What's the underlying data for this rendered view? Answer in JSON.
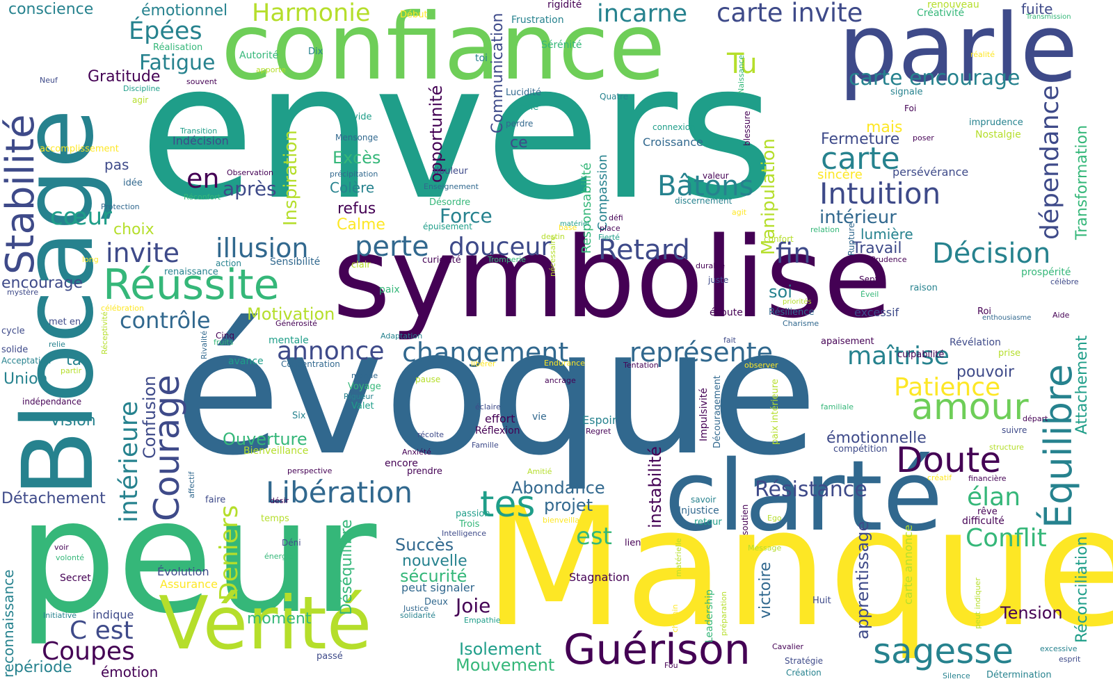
{
  "palette": {
    "dark_purple": "#440154",
    "indigo": "#3e4a89",
    "blue": "#31688e",
    "teal": "#26828e",
    "sea_green": "#1f9e89",
    "green": "#35b779",
    "light_green": "#6ece58",
    "lime": "#b5de2b",
    "yellow": "#fde725",
    "background": "#ffffff"
  },
  "words": [
    {
      "text": "envers",
      "color": "#1f9e89"
    },
    {
      "text": "évoque",
      "color": "#31688e"
    },
    {
      "text": "symbolise",
      "color": "#440154"
    },
    {
      "text": "confiance",
      "color": "#6ece58"
    },
    {
      "text": "parle",
      "color": "#3e4a89"
    },
    {
      "text": "Blocage",
      "color": "#26828e"
    },
    {
      "text": "peur",
      "color": "#35b779"
    },
    {
      "text": "Manque",
      "color": "#fde725"
    },
    {
      "text": "clarté",
      "color": "#31688e"
    },
    {
      "text": "Vérité",
      "color": "#b5de2b"
    },
    {
      "text": "Guérison",
      "color": "#440154"
    },
    {
      "text": "Stabilité",
      "color": "#3e4a89"
    },
    {
      "text": "Équilibre",
      "color": "#26828e"
    },
    {
      "text": "Réussite",
      "color": "#35b779"
    },
    {
      "text": "Doute",
      "color": "#440154"
    },
    {
      "text": "sagesse",
      "color": "#26828e"
    },
    {
      "text": "amour",
      "color": "#6ece58"
    },
    {
      "text": "Harmonie",
      "color": "#b5de2b"
    },
    {
      "text": "carte invite",
      "color": "#3e4a89"
    },
    {
      "text": "incarne",
      "color": "#26828e"
    },
    {
      "text": "Épées",
      "color": "#26828e"
    },
    {
      "text": "Fatigue",
      "color": "#26828e"
    },
    {
      "text": "Tu",
      "color": "#b5de2b"
    },
    {
      "text": "carte encourage",
      "color": "#26828e"
    },
    {
      "text": "carte",
      "color": "#26828e"
    },
    {
      "text": "Intuition",
      "color": "#3e4a89"
    },
    {
      "text": "Bâtons",
      "color": "#26828e"
    },
    {
      "text": "dépendance",
      "color": "#3e4a89"
    },
    {
      "text": "Décision",
      "color": "#26828e"
    },
    {
      "text": "Retard",
      "color": "#3e4a89"
    },
    {
      "text": "fin",
      "color": "#3e4a89"
    },
    {
      "text": "perte",
      "color": "#31688e"
    },
    {
      "text": "douceur",
      "color": "#3e4a89"
    },
    {
      "text": "illusion",
      "color": "#31688e"
    },
    {
      "text": "invite",
      "color": "#3e4a89"
    },
    {
      "text": "changement",
      "color": "#31688e"
    },
    {
      "text": "représente",
      "color": "#31688e"
    },
    {
      "text": "annonce",
      "color": "#3e4a89"
    },
    {
      "text": "contrôle",
      "color": "#31688e"
    },
    {
      "text": "Courage",
      "color": "#3e4a89"
    },
    {
      "text": "intérieure",
      "color": "#26828e"
    },
    {
      "text": "Libération",
      "color": "#31688e"
    },
    {
      "text": "tes",
      "color": "#1f9e89"
    },
    {
      "text": "Patience",
      "color": "#fde725"
    },
    {
      "text": "maîtrise",
      "color": "#26828e"
    },
    {
      "text": "Conflit",
      "color": "#35b779"
    },
    {
      "text": "élan",
      "color": "#35b779"
    },
    {
      "text": "Résistance",
      "color": "#3e4a89"
    },
    {
      "text": "Deniers",
      "color": "#b5de2b"
    },
    {
      "text": "Coupes",
      "color": "#440154"
    },
    {
      "text": "C est",
      "color": "#3e4a89"
    },
    {
      "text": "Joie",
      "color": "#440154"
    },
    {
      "text": "Mouvement",
      "color": "#35b779"
    },
    {
      "text": "Isolement",
      "color": "#1f9e89"
    },
    {
      "text": "en",
      "color": "#440154"
    },
    {
      "text": "après",
      "color": "#3e4a89"
    },
    {
      "text": "cœur",
      "color": "#1f9e89"
    },
    {
      "text": "Manipulation",
      "color": "#b5de2b"
    },
    {
      "text": "Inspiration",
      "color": "#b5de2b"
    },
    {
      "text": "opportunité",
      "color": "#440154"
    },
    {
      "text": "Communication",
      "color": "#3e4a89"
    },
    {
      "text": "Transformation",
      "color": "#35b779"
    },
    {
      "text": "Attachement",
      "color": "#1f9e89"
    },
    {
      "text": "Réconciliation",
      "color": "#1f9e89"
    },
    {
      "text": "apprentissage",
      "color": "#3e4a89"
    },
    {
      "text": "instabilité",
      "color": "#440154"
    },
    {
      "text": "Déséquilibre",
      "color": "#35b779"
    },
    {
      "text": "victoire",
      "color": "#31688e"
    },
    {
      "text": "Confusion",
      "color": "#3e4a89"
    },
    {
      "text": "Tension",
      "color": "#440154"
    },
    {
      "text": "Ouverture",
      "color": "#35b779"
    },
    {
      "text": "Abondance",
      "color": "#31688e"
    },
    {
      "text": "projet",
      "color": "#31688e"
    },
    {
      "text": "est",
      "color": "#35b779"
    },
    {
      "text": "Succès",
      "color": "#31688e"
    },
    {
      "text": "nouvelle",
      "color": "#26828e"
    },
    {
      "text": "sécurité",
      "color": "#35b779"
    },
    {
      "text": "Motivation",
      "color": "#b5de2b"
    },
    {
      "text": "Force",
      "color": "#26828e"
    },
    {
      "text": "Calme",
      "color": "#fde725"
    },
    {
      "text": "Excès",
      "color": "#35b779"
    },
    {
      "text": "Colère",
      "color": "#26828e"
    },
    {
      "text": "refus",
      "color": "#440154"
    },
    {
      "text": "Gratitude",
      "color": "#440154"
    },
    {
      "text": "conscience",
      "color": "#26828e"
    },
    {
      "text": "émotionnel",
      "color": "#26828e"
    },
    {
      "text": "choix",
      "color": "#b5de2b"
    },
    {
      "text": "Fermeture",
      "color": "#3e4a89"
    },
    {
      "text": "mais",
      "color": "#fde725"
    },
    {
      "text": "sincère",
      "color": "#fde725"
    },
    {
      "text": "intérieur",
      "color": "#31688e"
    },
    {
      "text": "lumière",
      "color": "#26828e"
    },
    {
      "text": "Travail",
      "color": "#3e4a89"
    },
    {
      "text": "soi",
      "color": "#26828e"
    },
    {
      "text": "émotionnelle",
      "color": "#3e4a89"
    },
    {
      "text": "pouvoir",
      "color": "#3e4a89"
    },
    {
      "text": "Union",
      "color": "#26828e"
    },
    {
      "text": "Vision",
      "color": "#26828e"
    },
    {
      "text": "encourage",
      "color": "#3e4a89"
    },
    {
      "text": "ta",
      "color": "#26828e"
    },
    {
      "text": "Détachement",
      "color": "#3e4a89"
    },
    {
      "text": "moment",
      "color": "#35b779"
    },
    {
      "text": "période",
      "color": "#26828e"
    },
    {
      "text": "émotion",
      "color": "#440154"
    },
    {
      "text": "ce",
      "color": "#3e4a89"
    },
    {
      "text": "pas",
      "color": "#3e4a89"
    },
    {
      "text": "Compassion",
      "color": "#26828e"
    },
    {
      "text": "Responsabilité",
      "color": "#35b779"
    },
    {
      "text": "reconnaissance",
      "color": "#26828e"
    },
    {
      "text": "persévérance",
      "color": "#3e4a89"
    },
    {
      "text": "Indécision",
      "color": "#3e4a89"
    },
    {
      "text": "Croissance",
      "color": "#31688e"
    },
    {
      "text": "Sensibilité",
      "color": "#31688e"
    },
    {
      "text": "Réflexion",
      "color": "#440154"
    },
    {
      "text": "effort",
      "color": "#440154"
    },
    {
      "text": "Espoir",
      "color": "#26828e"
    },
    {
      "text": "Injustice",
      "color": "#31688e"
    },
    {
      "text": "Stagnation",
      "color": "#440154"
    },
    {
      "text": "peut signaler",
      "color": "#31688e"
    },
    {
      "text": "Bienveillance",
      "color": "#b5de2b"
    },
    {
      "text": "Évolution",
      "color": "#3e4a89"
    },
    {
      "text": "Assurance",
      "color": "#fde725"
    },
    {
      "text": "Secret",
      "color": "#440154"
    },
    {
      "text": "indique",
      "color": "#3e4a89"
    },
    {
      "text": "Frustration",
      "color": "#26828e"
    },
    {
      "text": "Sérénité",
      "color": "#35b779"
    },
    {
      "text": "rigidité",
      "color": "#440154"
    },
    {
      "text": "Créativité",
      "color": "#35b779"
    },
    {
      "text": "Nostalgie",
      "color": "#b5de2b"
    },
    {
      "text": "imprudence",
      "color": "#26828e"
    },
    {
      "text": "fuite",
      "color": "#3e4a89"
    },
    {
      "text": "renouveau",
      "color": "#b5de2b"
    },
    {
      "text": "L",
      "color": "#3e4a89"
    },
    {
      "text": "Réalisation",
      "color": "#35b779"
    },
    {
      "text": "Autorité",
      "color": "#35b779"
    },
    {
      "text": "Dix",
      "color": "#26828e"
    },
    {
      "text": "Début",
      "color": "#fde725"
    },
    {
      "text": "toi",
      "color": "#26828e"
    },
    {
      "text": "Discipline",
      "color": "#1f9e89"
    },
    {
      "text": "souvent",
      "color": "#440154"
    },
    {
      "text": "Neuf",
      "color": "#3e4a89"
    },
    {
      "text": "agir",
      "color": "#b5de2b"
    },
    {
      "text": "apporte",
      "color": "#b5de2b"
    },
    {
      "text": "Lucidité",
      "color": "#31688e"
    },
    {
      "text": "Reine",
      "color": "#1f9e89"
    },
    {
      "text": "perdre",
      "color": "#31688e"
    },
    {
      "text": "Quatre",
      "color": "#26828e"
    },
    {
      "text": "signale",
      "color": "#26828e"
    },
    {
      "text": "Foi",
      "color": "#440154"
    },
    {
      "text": "connexion",
      "color": "#1f9e89"
    },
    {
      "text": "Naissance",
      "color": "#35b779"
    },
    {
      "text": "poser",
      "color": "#440154"
    },
    {
      "text": "accomplissement",
      "color": "#fde725"
    },
    {
      "text": "Transition",
      "color": "#1f9e89"
    },
    {
      "text": "idée",
      "color": "#31688e"
    },
    {
      "text": "Observation",
      "color": "#440154"
    },
    {
      "text": "Protection",
      "color": "#31688e"
    },
    {
      "text": "Réconfort",
      "color": "#35b779"
    },
    {
      "text": "Mensonge",
      "color": "#31688e"
    },
    {
      "text": "vide",
      "color": "#1f9e89"
    },
    {
      "text": "précipitation",
      "color": "#31688e"
    },
    {
      "text": "Enseignement",
      "color": "#31688e"
    },
    {
      "text": "Désordre",
      "color": "#35b779"
    },
    {
      "text": "épuisement",
      "color": "#1f9e89"
    },
    {
      "text": "douleur",
      "color": "#3e4a89"
    },
    {
      "text": "curiosité",
      "color": "#440154"
    },
    {
      "text": "Tromperie",
      "color": "#35b779"
    },
    {
      "text": "base",
      "color": "#fde725"
    },
    {
      "text": "matériel",
      "color": "#1f9e89"
    },
    {
      "text": "défi",
      "color": "#440154"
    },
    {
      "text": "place",
      "color": "#440154"
    },
    {
      "text": "Fierté",
      "color": "#1f9e89"
    },
    {
      "text": "destin",
      "color": "#b5de2b"
    },
    {
      "text": "valeur",
      "color": "#440154"
    },
    {
      "text": "discernement",
      "color": "#26828e"
    },
    {
      "text": "agit",
      "color": "#fde725"
    },
    {
      "text": "blessure",
      "color": "#440154"
    },
    {
      "text": "relation",
      "color": "#35b779"
    },
    {
      "text": "confort",
      "color": "#b5de2b"
    },
    {
      "text": "durable",
      "color": "#440154"
    },
    {
      "text": "juste",
      "color": "#3e4a89"
    },
    {
      "text": "Prudence",
      "color": "#440154"
    },
    {
      "text": "prospérité",
      "color": "#35b779"
    },
    {
      "text": "célèbre",
      "color": "#3e4a89"
    },
    {
      "text": "raison",
      "color": "#26828e"
    },
    {
      "text": "Sept",
      "color": "#440154"
    },
    {
      "text": "Éveil",
      "color": "#35b779"
    },
    {
      "text": "priorités",
      "color": "#b5de2b"
    },
    {
      "text": "Rupture",
      "color": "#31688e"
    },
    {
      "text": "excessif",
      "color": "#3e4a89"
    },
    {
      "text": "Résilience",
      "color": "#31688e"
    },
    {
      "text": "Charisme",
      "color": "#31688e"
    },
    {
      "text": "écoute",
      "color": "#440154"
    },
    {
      "text": "Roi",
      "color": "#440154"
    },
    {
      "text": "enthousiasme",
      "color": "#31688e"
    },
    {
      "text": "Aide",
      "color": "#440154"
    },
    {
      "text": "apaisement",
      "color": "#440154"
    },
    {
      "text": "Révélation",
      "color": "#3e4a89"
    },
    {
      "text": "prise",
      "color": "#b5de2b"
    },
    {
      "text": "culpabilité",
      "color": "#440154"
    },
    {
      "text": "renaissance",
      "color": "#26828e"
    },
    {
      "text": "action",
      "color": "#26828e"
    },
    {
      "text": "mystère",
      "color": "#3e4a89"
    },
    {
      "text": "long",
      "color": "#fde725"
    },
    {
      "text": "clair",
      "color": "#b5de2b"
    },
    {
      "text": "paix",
      "color": "#35b779"
    },
    {
      "text": "célébration",
      "color": "#fde725"
    },
    {
      "text": "Générosité",
      "color": "#440154"
    },
    {
      "text": "mentale",
      "color": "#1f9e89"
    },
    {
      "text": "Cinq",
      "color": "#440154"
    },
    {
      "text": "fruits",
      "color": "#35b779"
    },
    {
      "text": "Adaptation",
      "color": "#26828e"
    },
    {
      "text": "nécessaire",
      "color": "#b5de2b"
    },
    {
      "text": "cycle",
      "color": "#3e4a89"
    },
    {
      "text": "met en",
      "color": "#3e4a89"
    },
    {
      "text": "solide",
      "color": "#3e4a89"
    },
    {
      "text": "relie",
      "color": "#26828e"
    },
    {
      "text": "Acceptation",
      "color": "#26828e"
    },
    {
      "text": "partir",
      "color": "#b5de2b"
    },
    {
      "text": "Réceptivité",
      "color": "#b5de2b"
    },
    {
      "text": "Rivalité",
      "color": "#31688e"
    },
    {
      "text": "avance",
      "color": "#1f9e89"
    },
    {
      "text": "Concentration",
      "color": "#31688e"
    },
    {
      "text": "fait",
      "color": "#3e4a89"
    },
    {
      "text": "libérer",
      "color": "#fde725"
    },
    {
      "text": "Endurance",
      "color": "#fde725"
    },
    {
      "text": "Tentation",
      "color": "#440154"
    },
    {
      "text": "observer",
      "color": "#fde725"
    },
    {
      "text": "monde",
      "color": "#31688e"
    },
    {
      "text": "Voyage",
      "color": "#35b779"
    },
    {
      "text": "Rigueur",
      "color": "#26828e"
    },
    {
      "text": "Valet",
      "color": "#1f9e89"
    },
    {
      "text": "pause",
      "color": "#b5de2b"
    },
    {
      "text": "ancrage",
      "color": "#440154"
    },
    {
      "text": "Impulsivité",
      "color": "#440154"
    },
    {
      "text": "Découragement",
      "color": "#31688e"
    },
    {
      "text": "paix intérieure",
      "color": "#b5de2b"
    },
    {
      "text": "familiale",
      "color": "#35b779"
    },
    {
      "text": "indépendance",
      "color": "#440154"
    },
    {
      "text": "Six",
      "color": "#26828e"
    },
    {
      "text": "éclaire",
      "color": "#3e4a89"
    },
    {
      "text": "vie",
      "color": "#31688e"
    },
    {
      "text": "Regret",
      "color": "#440154"
    },
    {
      "text": "départ",
      "color": "#440154"
    },
    {
      "text": "suivre",
      "color": "#3e4a89"
    },
    {
      "text": "récolte",
      "color": "#3e4a89"
    },
    {
      "text": "Famille",
      "color": "#3e4a89"
    },
    {
      "text": "Anxiété",
      "color": "#440154"
    },
    {
      "text": "encore",
      "color": "#440154"
    },
    {
      "text": "compétition",
      "color": "#3e4a89"
    },
    {
      "text": "structure",
      "color": "#b5de2b"
    },
    {
      "text": "affectif",
      "color": "#31688e"
    },
    {
      "text": "perspective",
      "color": "#440154"
    },
    {
      "text": "prendre",
      "color": "#440154"
    },
    {
      "text": "Amitié",
      "color": "#b5de2b"
    },
    {
      "text": "créatif",
      "color": "#fde725"
    },
    {
      "text": "financière",
      "color": "#440154"
    },
    {
      "text": "faire",
      "color": "#3e4a89"
    },
    {
      "text": "désir",
      "color": "#440154"
    },
    {
      "text": "passion",
      "color": "#1f9e89"
    },
    {
      "text": "savoir",
      "color": "#26828e"
    },
    {
      "text": "soutien",
      "color": "#440154"
    },
    {
      "text": "Ego",
      "color": "#b5de2b"
    },
    {
      "text": "rêve",
      "color": "#440154"
    },
    {
      "text": "difficulté",
      "color": "#440154"
    },
    {
      "text": "temps",
      "color": "#b5de2b"
    },
    {
      "text": "Trois",
      "color": "#35b779"
    },
    {
      "text": "bienveillante",
      "color": "#fde725"
    },
    {
      "text": "retour",
      "color": "#1f9e89"
    },
    {
      "text": "Intelligence",
      "color": "#3e4a89"
    },
    {
      "text": "lien",
      "color": "#440154"
    },
    {
      "text": "voir",
      "color": "#440154"
    },
    {
      "text": "volonté",
      "color": "#35b779"
    },
    {
      "text": "Déni",
      "color": "#3e4a89"
    },
    {
      "text": "énergie",
      "color": "#35b779"
    },
    {
      "text": "matérielle",
      "color": "#b5de2b"
    },
    {
      "text": "préparation",
      "color": "#b5de2b"
    },
    {
      "text": "Leadership",
      "color": "#35b779"
    },
    {
      "text": "carte annonce",
      "color": "#b5de2b"
    },
    {
      "text": "Message",
      "color": "#b5de2b"
    },
    {
      "text": "Deux",
      "color": "#31688e"
    },
    {
      "text": "Justice",
      "color": "#31688e"
    },
    {
      "text": "solidarité",
      "color": "#26828e"
    },
    {
      "text": "Empathie",
      "color": "#1f9e89"
    },
    {
      "text": "Huit",
      "color": "#3e4a89"
    },
    {
      "text": "Initiative",
      "color": "#26828e"
    },
    {
      "text": "passé",
      "color": "#3e4a89"
    },
    {
      "text": "chemin",
      "color": "#fde725"
    },
    {
      "text": "Fou",
      "color": "#440154"
    },
    {
      "text": "Cavalier",
      "color": "#440154"
    },
    {
      "text": "Stratégie",
      "color": "#3e4a89"
    },
    {
      "text": "Création",
      "color": "#26828e"
    },
    {
      "text": "peut indiquer",
      "color": "#b5de2b"
    },
    {
      "text": "excessive",
      "color": "#26828e"
    },
    {
      "text": "esprit",
      "color": "#3e4a89"
    },
    {
      "text": "Silence",
      "color": "#26828e"
    },
    {
      "text": "Détermination",
      "color": "#26828e"
    },
    {
      "text": "réalité",
      "color": "#fde725"
    },
    {
      "text": "Transmission",
      "color": "#35b779"
    }
  ]
}
